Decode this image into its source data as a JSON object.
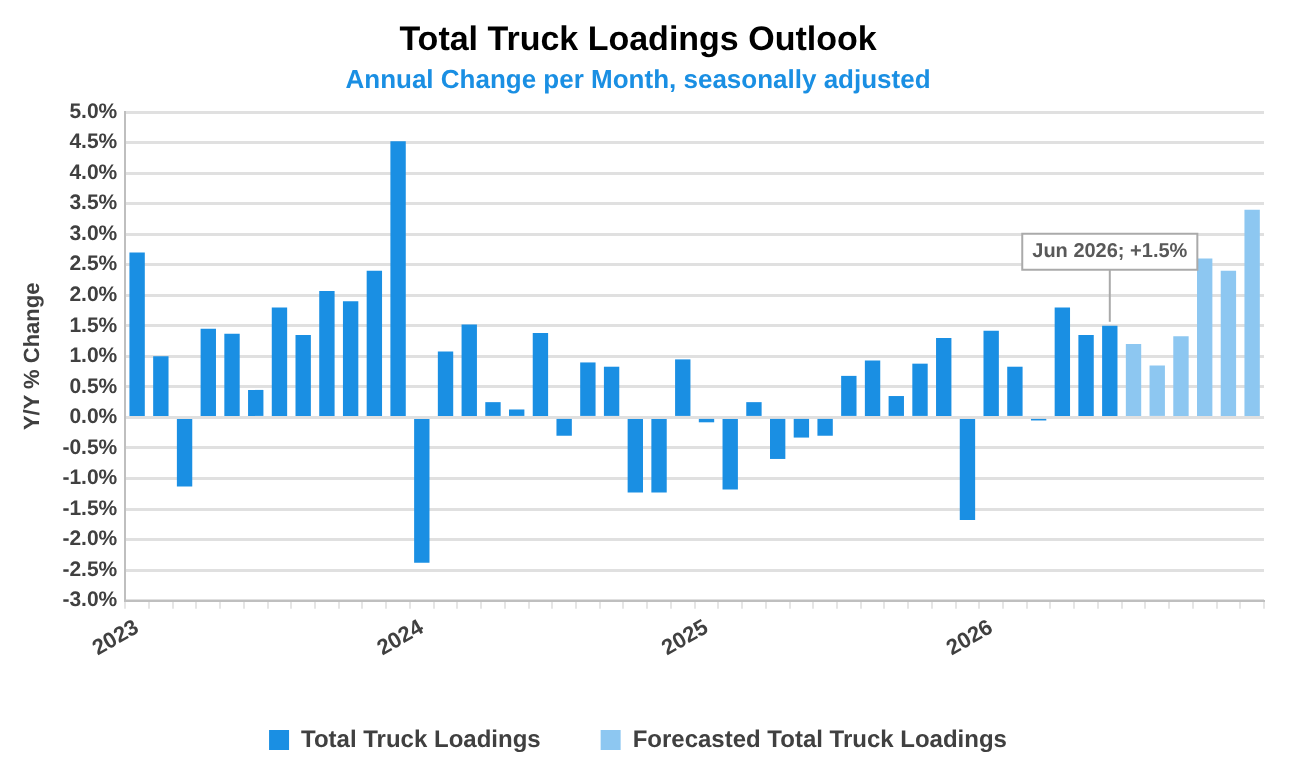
{
  "chart_data": {
    "type": "bar",
    "title": "Total Truck Loadings Outlook",
    "subtitle": "Annual Change per Month, seasonally adjusted",
    "ylabel": "Y/Y % Change",
    "categories": [
      "2023",
      null,
      null,
      null,
      null,
      null,
      null,
      null,
      null,
      null,
      null,
      null,
      "2024",
      null,
      null,
      null,
      null,
      null,
      null,
      null,
      null,
      null,
      null,
      null,
      "2025",
      null,
      null,
      null,
      null,
      null,
      null,
      null,
      null,
      null,
      null,
      null,
      "2026",
      null,
      null,
      null,
      null,
      null,
      null,
      null,
      null,
      null,
      null,
      null
    ],
    "series": [
      {
        "name": "Total Truck Loadings",
        "color": "#1a8fe3",
        "values": [
          2.7,
          1.0,
          -1.13,
          1.45,
          1.37,
          0.45,
          1.8,
          1.35,
          2.07,
          1.9,
          2.4,
          4.52,
          -2.38,
          1.08,
          1.52,
          0.25,
          0.13,
          1.38,
          -0.3,
          0.9,
          0.83,
          -1.23,
          -1.23,
          0.95,
          -0.08,
          -1.18,
          0.25,
          -0.68,
          -0.33,
          -0.3,
          0.68,
          0.93,
          0.35,
          0.88,
          1.3,
          -1.68,
          1.42,
          0.83,
          -0.05,
          1.8,
          1.35,
          1.5,
          null,
          null,
          null,
          null,
          null,
          null
        ],
        "value_labels": [
          null,
          null,
          null,
          null,
          null,
          null,
          null,
          null,
          null,
          null,
          null,
          null,
          null,
          null,
          null,
          null,
          null,
          null,
          null,
          null,
          null,
          null,
          null,
          null,
          null,
          null,
          null,
          null,
          null,
          null,
          null,
          null,
          null,
          null,
          null,
          null,
          null,
          null,
          null,
          null,
          null,
          "Jun 2026; +1.5%",
          null,
          null,
          null,
          null,
          null,
          null
        ]
      },
      {
        "name": "Forecasted Total Truck Loadings",
        "color": "#8dc7f1",
        "values": [
          null,
          null,
          null,
          null,
          null,
          null,
          null,
          null,
          null,
          null,
          null,
          null,
          null,
          null,
          null,
          null,
          null,
          null,
          null,
          null,
          null,
          null,
          null,
          null,
          null,
          null,
          null,
          null,
          null,
          null,
          null,
          null,
          null,
          null,
          null,
          null,
          null,
          null,
          null,
          null,
          null,
          null,
          1.2,
          0.85,
          1.33,
          2.6,
          2.4,
          3.4
        ]
      }
    ],
    "ylim": [
      -3,
      5
    ],
    "yticks": [
      {
        "value": -3,
        "label": "-3.0%"
      },
      {
        "value": -2.5,
        "label": "-2.5%"
      },
      {
        "value": -2,
        "label": "-2.0%"
      },
      {
        "value": -1.5,
        "label": "-1.5%"
      },
      {
        "value": -1,
        "label": "-1.0%"
      },
      {
        "value": -0.5,
        "label": "-0.5%"
      },
      {
        "value": 0,
        "label": "0.0%"
      },
      {
        "value": 0.5,
        "label": "0.5%"
      },
      {
        "value": 1,
        "label": "1.0%"
      },
      {
        "value": 1.5,
        "label": "1.5%"
      },
      {
        "value": 2,
        "label": "2.0%"
      },
      {
        "value": 2.5,
        "label": "2.5%"
      },
      {
        "value": 3,
        "label": "3.0%"
      },
      {
        "value": 3.5,
        "label": "3.5%"
      },
      {
        "value": 4,
        "label": "4.0%"
      },
      {
        "value": 4.5,
        "label": "4.5%"
      },
      {
        "value": 5,
        "label": "5.0%"
      }
    ],
    "grid": "y",
    "legend": "bottom"
  }
}
